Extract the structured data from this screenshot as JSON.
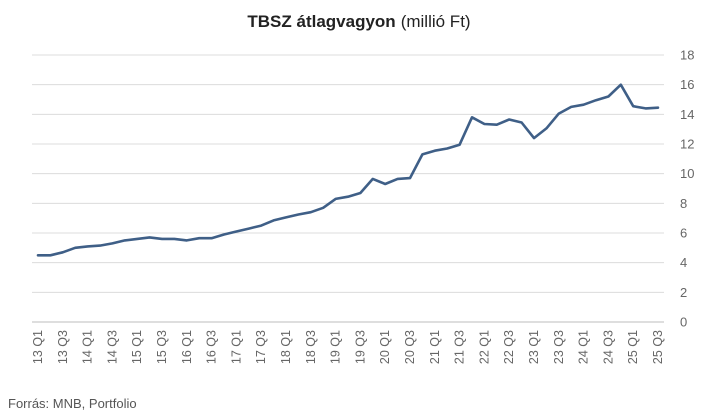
{
  "chart_data": {
    "type": "line",
    "title": "TBSZ átlagvagyon",
    "subtitle": "(millió Ft)",
    "xlabel": "",
    "ylabel": "",
    "source": "Forrás: MNB, Portfolio",
    "ylim": [
      0,
      18
    ],
    "y_ticks": [
      0,
      2,
      4,
      6,
      8,
      10,
      12,
      14,
      16,
      18
    ],
    "y_axis_side": "right",
    "grid": true,
    "legend": "none",
    "line_color": "#3f5f87",
    "x": [
      "13 Q1",
      "13 Q2",
      "13 Q3",
      "13 Q4",
      "14 Q1",
      "14 Q2",
      "14 Q3",
      "14 Q4",
      "15 Q1",
      "15 Q2",
      "15 Q3",
      "15 Q4",
      "16 Q1",
      "16 Q2",
      "16 Q3",
      "16 Q4",
      "17 Q1",
      "17 Q2",
      "17 Q3",
      "17 Q4",
      "18 Q1",
      "18 Q2",
      "18 Q3",
      "18 Q4",
      "19 Q1",
      "19 Q2",
      "19 Q3",
      "19 Q4",
      "20 Q1",
      "20 Q2",
      "20 Q3",
      "20 Q4",
      "21 Q1",
      "21 Q2",
      "21 Q3",
      "21 Q4",
      "22 Q1",
      "22 Q2",
      "22 Q3",
      "22 Q4",
      "23 Q1",
      "23 Q2",
      "23 Q3",
      "23 Q4",
      "24 Q1",
      "24 Q2",
      "24 Q3",
      "24 Q4",
      "25 Q1",
      "25 Q2",
      "25 Q3"
    ],
    "x_tick_labels": [
      "13 Q1",
      "13 Q3",
      "14 Q1",
      "14 Q3",
      "15 Q1",
      "15 Q3",
      "16 Q1",
      "16 Q3",
      "17 Q1",
      "17 Q3",
      "18 Q1",
      "18 Q3",
      "19 Q1",
      "19 Q3",
      "20 Q1",
      "20 Q3",
      "21 Q1",
      "21 Q3",
      "22 Q1",
      "22 Q3",
      "23 Q1",
      "23 Q3",
      "24 Q1",
      "24 Q3",
      "25 Q1",
      "25 Q3"
    ],
    "series": [
      {
        "values": [
          4.5,
          4.5,
          4.7,
          5.0,
          5.1,
          5.15,
          5.3,
          5.5,
          5.6,
          5.7,
          5.6,
          5.6,
          5.5,
          5.65,
          5.65,
          5.9,
          6.1,
          6.3,
          6.5,
          6.85,
          7.05,
          7.25,
          7.4,
          7.7,
          8.3,
          8.45,
          8.7,
          9.65,
          9.3,
          9.65,
          9.7,
          11.3,
          11.55,
          11.7,
          11.95,
          13.8,
          13.35,
          13.3,
          13.65,
          13.45,
          12.4,
          13.05,
          14.05,
          14.5,
          14.65,
          14.95,
          15.2,
          16.0,
          14.55,
          14.4,
          14.45
        ]
      }
    ]
  }
}
